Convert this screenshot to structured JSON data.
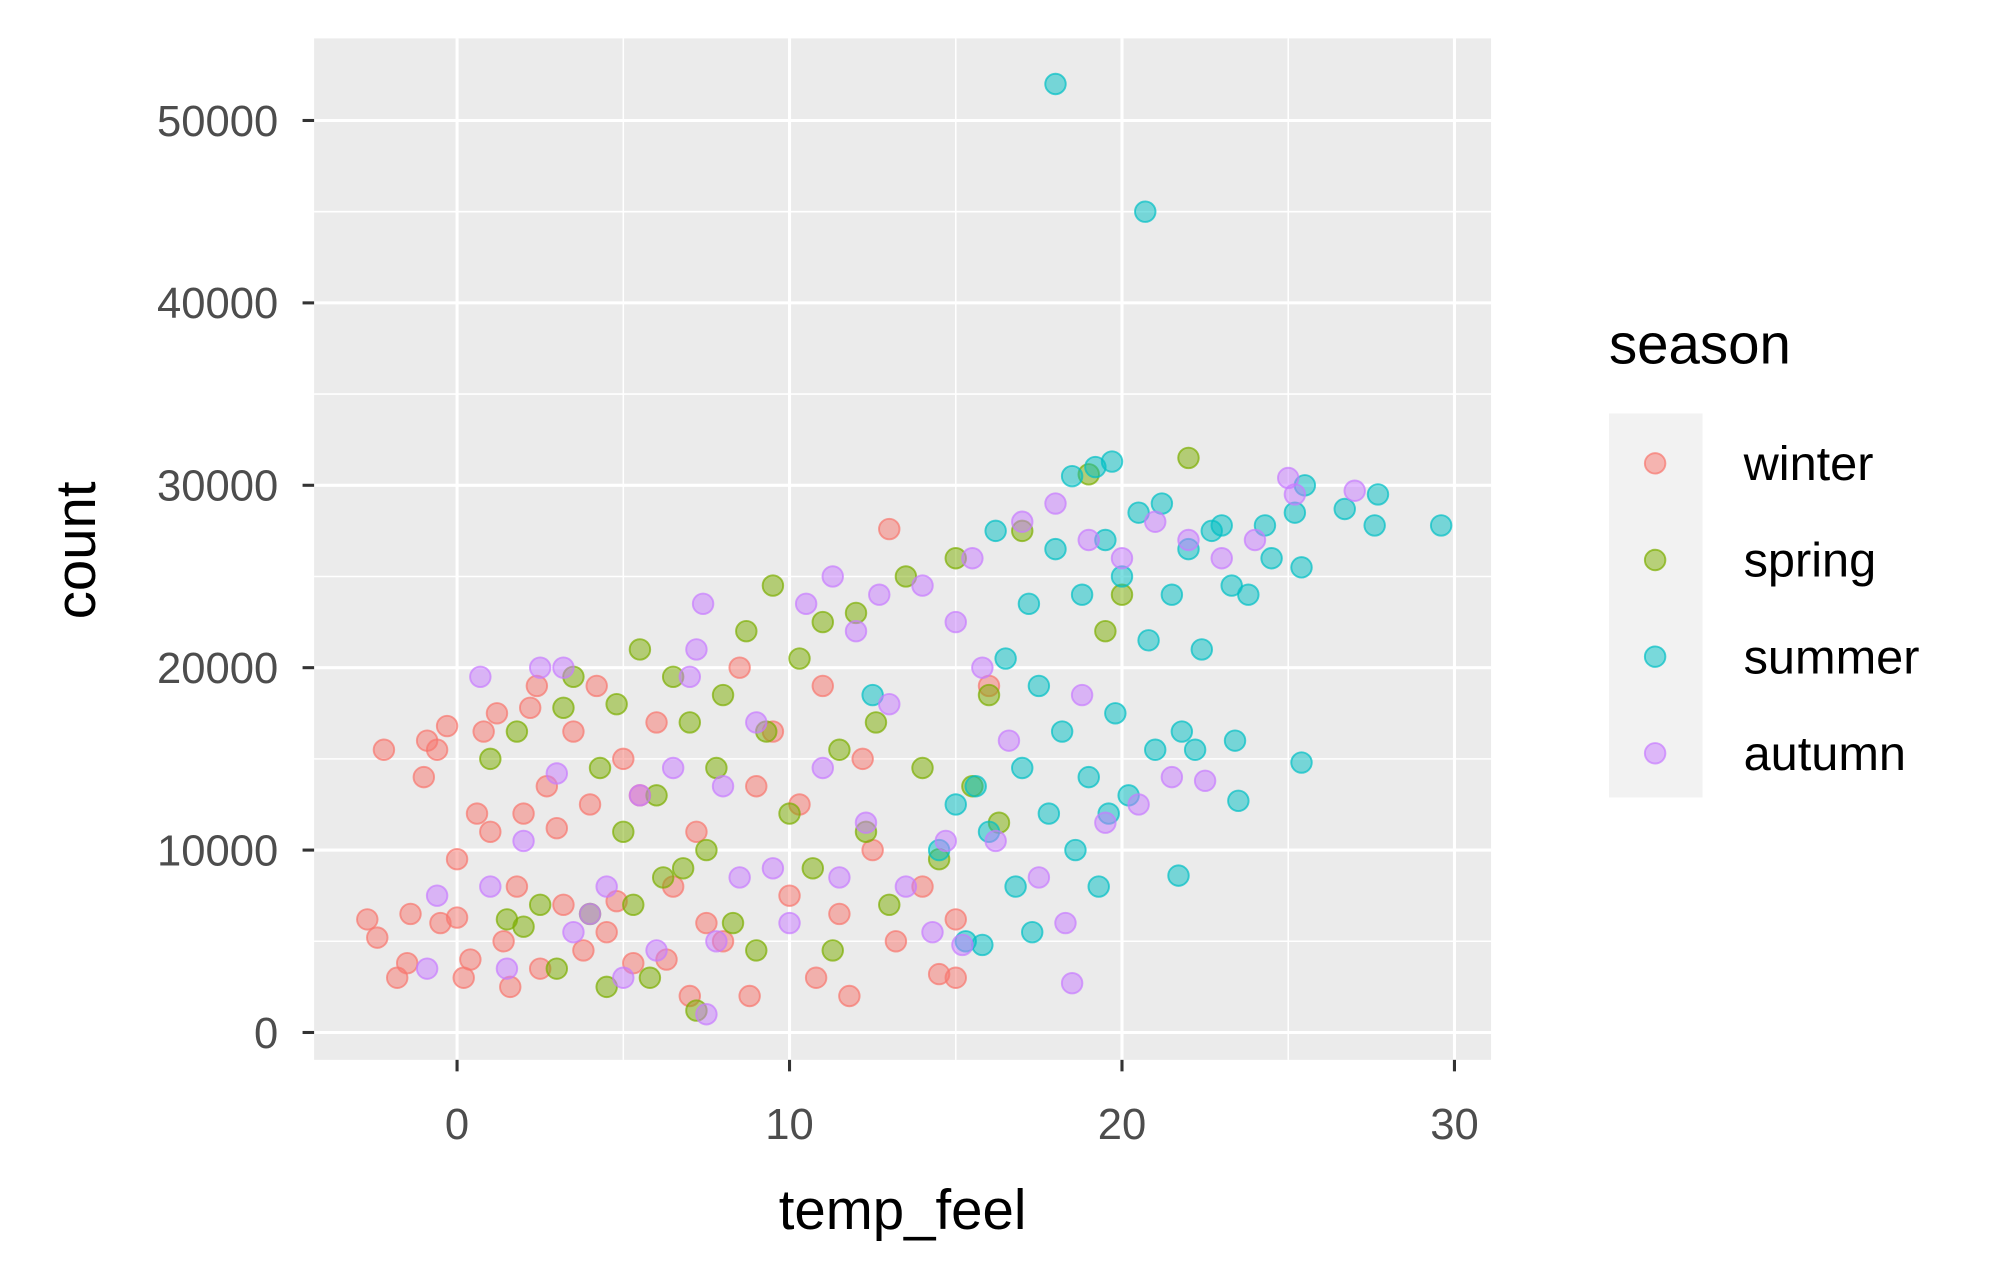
{
  "chart_data": {
    "type": "scatter",
    "xlabel": "temp_feel",
    "ylabel": "count",
    "xlim": [
      -4.3,
      31.1
    ],
    "ylim": [
      -1500,
      54500
    ],
    "x_ticks": [
      "0",
      "10",
      "20",
      "30"
    ],
    "x_tick_values": [
      0,
      10,
      20,
      30
    ],
    "y_ticks": [
      "0",
      "10000",
      "20000",
      "30000",
      "40000",
      "50000"
    ],
    "y_tick_values": [
      0,
      10000,
      20000,
      30000,
      40000,
      50000
    ],
    "grid": true,
    "legend": {
      "title": "season",
      "position": "right"
    },
    "point_alpha": 0.5,
    "series": [
      {
        "name": "winter",
        "color": "#F8766D",
        "points": [
          [
            -2.7,
            6200
          ],
          [
            -2.4,
            5200
          ],
          [
            -2.2,
            15500
          ],
          [
            -1.8,
            3000
          ],
          [
            -1.5,
            3800
          ],
          [
            -1.4,
            6500
          ],
          [
            -1,
            14000
          ],
          [
            -0.9,
            16000
          ],
          [
            -0.6,
            15500
          ],
          [
            -0.5,
            6000
          ],
          [
            -0.3,
            16800
          ],
          [
            0,
            6300
          ],
          [
            0,
            9500
          ],
          [
            0.2,
            3000
          ],
          [
            0.4,
            4000
          ],
          [
            0.6,
            12000
          ],
          [
            0.8,
            16500
          ],
          [
            1,
            11000
          ],
          [
            1.2,
            17500
          ],
          [
            1.4,
            5000
          ],
          [
            1.6,
            2500
          ],
          [
            1.8,
            8000
          ],
          [
            2,
            12000
          ],
          [
            2.2,
            17800
          ],
          [
            2.4,
            19000
          ],
          [
            2.5,
            3500
          ],
          [
            2.7,
            13500
          ],
          [
            3,
            11200
          ],
          [
            3.2,
            7000
          ],
          [
            3.5,
            16500
          ],
          [
            3.8,
            4500
          ],
          [
            4,
            12500
          ],
          [
            4.2,
            19000
          ],
          [
            4.5,
            5500
          ],
          [
            4.8,
            7200
          ],
          [
            5,
            15000
          ],
          [
            5.3,
            3800
          ],
          [
            5.5,
            13000
          ],
          [
            6,
            17000
          ],
          [
            6.3,
            4000
          ],
          [
            6.5,
            8000
          ],
          [
            7,
            2000
          ],
          [
            7.2,
            11000
          ],
          [
            7.5,
            6000
          ],
          [
            8,
            5000
          ],
          [
            8.5,
            20000
          ],
          [
            8.8,
            2000
          ],
          [
            9,
            13500
          ],
          [
            9.5,
            16500
          ],
          [
            10,
            7500
          ],
          [
            10.3,
            12500
          ],
          [
            10.8,
            3000
          ],
          [
            11,
            19000
          ],
          [
            11.5,
            6500
          ],
          [
            11.8,
            2000
          ],
          [
            12.2,
            15000
          ],
          [
            12.5,
            10000
          ],
          [
            13,
            27600
          ],
          [
            13.2,
            5000
          ],
          [
            14,
            8000
          ],
          [
            14.5,
            3200
          ],
          [
            15,
            3000
          ],
          [
            15,
            6200
          ],
          [
            16,
            19000
          ]
        ]
      },
      {
        "name": "spring",
        "color": "#7CAE00",
        "points": [
          [
            1,
            15000
          ],
          [
            1.5,
            6200
          ],
          [
            1.8,
            16500
          ],
          [
            2,
            5800
          ],
          [
            2.5,
            7000
          ],
          [
            3,
            3500
          ],
          [
            3.2,
            17800
          ],
          [
            3.5,
            19500
          ],
          [
            4,
            6500
          ],
          [
            4.3,
            14500
          ],
          [
            4.5,
            2500
          ],
          [
            4.8,
            18000
          ],
          [
            5,
            11000
          ],
          [
            5.3,
            7000
          ],
          [
            5.5,
            21000
          ],
          [
            5.8,
            3000
          ],
          [
            6,
            13000
          ],
          [
            6.2,
            8500
          ],
          [
            6.5,
            19500
          ],
          [
            6.8,
            9000
          ],
          [
            7,
            17000
          ],
          [
            7.2,
            1200
          ],
          [
            7.5,
            10000
          ],
          [
            7.8,
            14500
          ],
          [
            8,
            18500
          ],
          [
            8.3,
            6000
          ],
          [
            8.7,
            22000
          ],
          [
            9,
            4500
          ],
          [
            9.3,
            16500
          ],
          [
            9.5,
            24500
          ],
          [
            10,
            12000
          ],
          [
            10.3,
            20500
          ],
          [
            10.7,
            9000
          ],
          [
            11,
            22500
          ],
          [
            11.3,
            4500
          ],
          [
            11.5,
            15500
          ],
          [
            12,
            23000
          ],
          [
            12.3,
            11000
          ],
          [
            12.6,
            17000
          ],
          [
            13,
            7000
          ],
          [
            13.5,
            25000
          ],
          [
            14,
            14500
          ],
          [
            14.5,
            9500
          ],
          [
            15,
            26000
          ],
          [
            15.5,
            13500
          ],
          [
            16,
            18500
          ],
          [
            16.3,
            11500
          ],
          [
            17,
            27500
          ],
          [
            19,
            30600
          ],
          [
            19.5,
            22000
          ],
          [
            20,
            24000
          ],
          [
            22,
            31500
          ]
        ]
      },
      {
        "name": "summer",
        "color": "#00BFC4",
        "points": [
          [
            12.5,
            18500
          ],
          [
            14.5,
            10000
          ],
          [
            15,
            12500
          ],
          [
            15.3,
            5000
          ],
          [
            15.6,
            13500
          ],
          [
            15.8,
            4800
          ],
          [
            16,
            11000
          ],
          [
            16.2,
            27500
          ],
          [
            16.5,
            20500
          ],
          [
            16.8,
            8000
          ],
          [
            17,
            14500
          ],
          [
            17.2,
            23500
          ],
          [
            17.3,
            5500
          ],
          [
            17.5,
            19000
          ],
          [
            17.8,
            12000
          ],
          [
            18,
            26500
          ],
          [
            18,
            52000
          ],
          [
            18.2,
            16500
          ],
          [
            18.5,
            30500
          ],
          [
            18.6,
            10000
          ],
          [
            18.8,
            24000
          ],
          [
            19,
            14000
          ],
          [
            19.2,
            31000
          ],
          [
            19.3,
            8000
          ],
          [
            19.5,
            27000
          ],
          [
            19.6,
            12000
          ],
          [
            19.7,
            31300
          ],
          [
            19.8,
            17500
          ],
          [
            20,
            25000
          ],
          [
            20.2,
            13000
          ],
          [
            20.5,
            28500
          ],
          [
            20.7,
            45000
          ],
          [
            20.8,
            21500
          ],
          [
            21,
            15500
          ],
          [
            21.2,
            29000
          ],
          [
            21.5,
            24000
          ],
          [
            21.7,
            8600
          ],
          [
            21.8,
            16500
          ],
          [
            22,
            26500
          ],
          [
            22.2,
            15500
          ],
          [
            22.4,
            21000
          ],
          [
            22.7,
            27500
          ],
          [
            23,
            27800
          ],
          [
            23.3,
            24500
          ],
          [
            23.4,
            16000
          ],
          [
            23.5,
            12700
          ],
          [
            23.8,
            24000
          ],
          [
            24.3,
            27800
          ],
          [
            24.5,
            26000
          ],
          [
            25.2,
            28500
          ],
          [
            25.4,
            25500
          ],
          [
            25.4,
            14800
          ],
          [
            25.5,
            30000
          ],
          [
            26.7,
            28700
          ],
          [
            27.6,
            27800
          ],
          [
            27.7,
            29500
          ],
          [
            29.6,
            27800
          ]
        ]
      },
      {
        "name": "autumn",
        "color": "#C77CFF",
        "points": [
          [
            -0.9,
            3500
          ],
          [
            -0.6,
            7500
          ],
          [
            0.7,
            19500
          ],
          [
            1,
            8000
          ],
          [
            1.5,
            3500
          ],
          [
            2,
            10500
          ],
          [
            2.5,
            20000
          ],
          [
            3,
            14200
          ],
          [
            3.2,
            20000
          ],
          [
            3.5,
            5500
          ],
          [
            4,
            6500
          ],
          [
            4.5,
            8000
          ],
          [
            5,
            3000
          ],
          [
            5.5,
            13000
          ],
          [
            6,
            4500
          ],
          [
            6.5,
            14500
          ],
          [
            7,
            19500
          ],
          [
            7.2,
            21000
          ],
          [
            7.4,
            23500
          ],
          [
            7.5,
            1000
          ],
          [
            7.8,
            5000
          ],
          [
            8,
            13500
          ],
          [
            8.5,
            8500
          ],
          [
            9,
            17000
          ],
          [
            9.5,
            9000
          ],
          [
            10,
            6000
          ],
          [
            10.5,
            23500
          ],
          [
            11,
            14500
          ],
          [
            11.3,
            25000
          ],
          [
            11.5,
            8500
          ],
          [
            12,
            22000
          ],
          [
            12.3,
            11500
          ],
          [
            12.7,
            24000
          ],
          [
            13,
            18000
          ],
          [
            13.5,
            8000
          ],
          [
            14,
            24500
          ],
          [
            14.3,
            5500
          ],
          [
            14.7,
            10500
          ],
          [
            15,
            22500
          ],
          [
            15.2,
            4800
          ],
          [
            15.5,
            26000
          ],
          [
            15.8,
            20000
          ],
          [
            16.2,
            10500
          ],
          [
            16.6,
            16000
          ],
          [
            17,
            28000
          ],
          [
            17.5,
            8500
          ],
          [
            18,
            29000
          ],
          [
            18.3,
            6000
          ],
          [
            18.5,
            2700
          ],
          [
            18.8,
            18500
          ],
          [
            19,
            27000
          ],
          [
            19.5,
            11500
          ],
          [
            20,
            26000
          ],
          [
            20.5,
            12500
          ],
          [
            21,
            28000
          ],
          [
            21.5,
            14000
          ],
          [
            22,
            27000
          ],
          [
            22.5,
            13800
          ],
          [
            23,
            26000
          ],
          [
            24,
            27000
          ],
          [
            25,
            30400
          ],
          [
            25.2,
            29500
          ],
          [
            27,
            29700
          ]
        ]
      }
    ]
  }
}
